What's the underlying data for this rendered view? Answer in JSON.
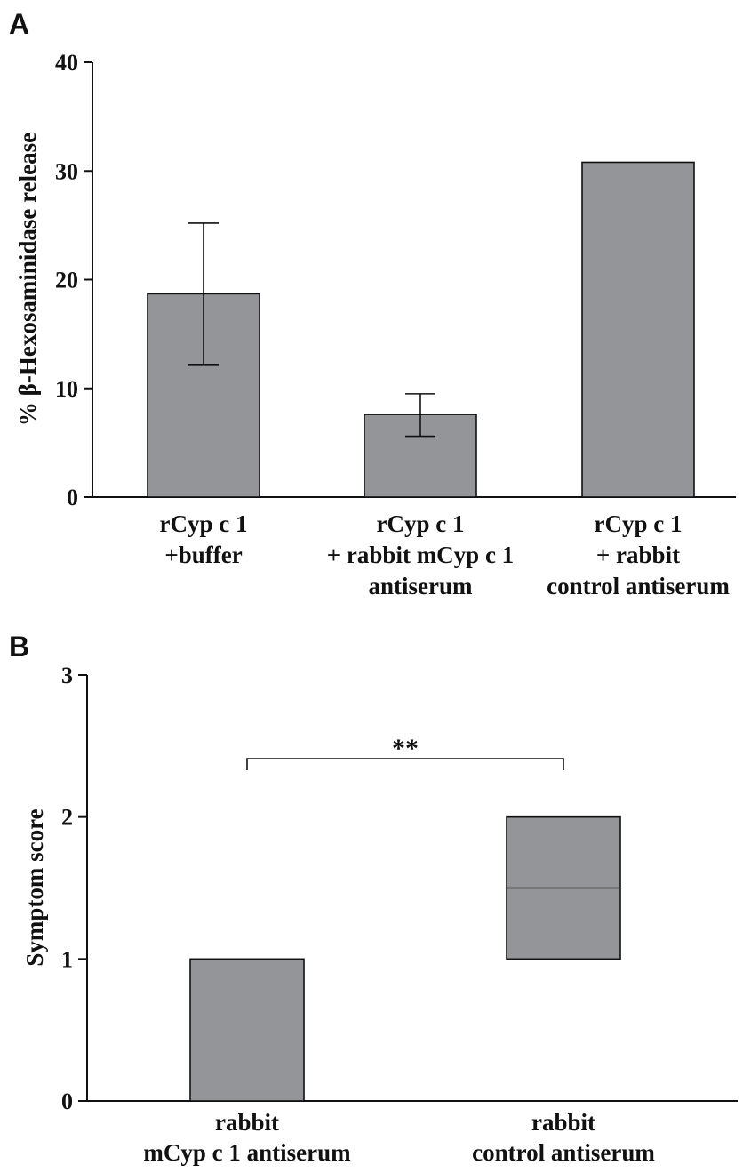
{
  "chart_data": [
    {
      "panel": "A",
      "type": "bar",
      "ylabel": "% β-Hexosaminidase release",
      "ylim": [
        0,
        40
      ],
      "yticks": [
        "0",
        "10",
        "20",
        "30",
        "40"
      ],
      "categories": [
        [
          "rCyp c 1",
          "+buffer"
        ],
        [
          "rCyp c 1",
          "+ rabbit mCyp c 1",
          "antiserum"
        ],
        [
          "rCyp c 1",
          "+ rabbit",
          "control antiserum"
        ]
      ],
      "values": [
        18.7,
        7.6,
        30.8
      ],
      "error_low": [
        12.2,
        5.6,
        null
      ],
      "error_high": [
        25.2,
        9.5,
        null
      ]
    },
    {
      "panel": "B",
      "type": "bar",
      "ylabel": "Symptom score",
      "ylim": [
        0,
        3
      ],
      "yticks": [
        "0",
        "1",
        "2",
        "3"
      ],
      "categories": [
        [
          "rabbit",
          "mCyp c 1 antiserum"
        ],
        [
          "rabbit",
          "control antiserum"
        ]
      ],
      "boxes": [
        {
          "low": 0,
          "high": 1,
          "median": null
        },
        {
          "low": 1,
          "high": 2,
          "median": 1.5
        }
      ],
      "significance": "**"
    }
  ]
}
